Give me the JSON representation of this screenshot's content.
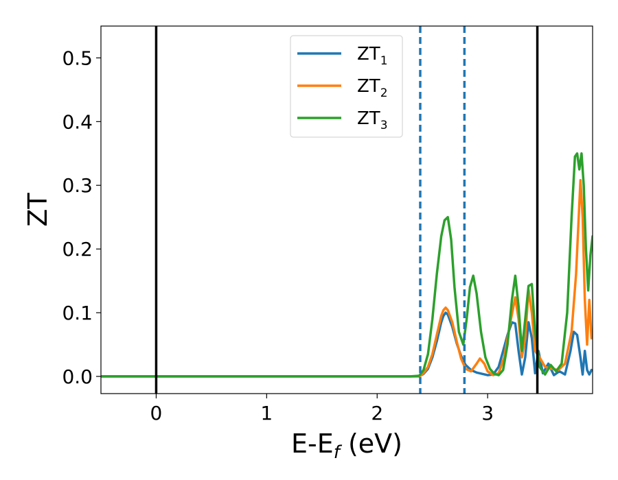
{
  "chart_data": {
    "type": "line",
    "xlabel_main": "E-E",
    "xlabel_sub": "f",
    "xlabel_unit": " (eV)",
    "ylabel": "ZT",
    "xlim": [
      -0.5,
      3.95
    ],
    "ylim": [
      -0.027,
      0.55
    ],
    "x_ticks": [
      0,
      1,
      2,
      3
    ],
    "x_tick_labels": [
      "0",
      "1",
      "2",
      "3"
    ],
    "y_ticks": [
      0.0,
      0.1,
      0.2,
      0.3,
      0.4,
      0.5
    ],
    "y_tick_labels": [
      "0.0",
      "0.1",
      "0.2",
      "0.3",
      "0.4",
      "0.5"
    ],
    "grid": false,
    "legend_position": "top-center",
    "vertical_lines": [
      {
        "x": 0.0,
        "style": "solid",
        "color": "#000000"
      },
      {
        "x": 2.39,
        "style": "dashed",
        "color": "#1f77b4"
      },
      {
        "x": 2.79,
        "style": "dashed",
        "color": "#1f77b4"
      },
      {
        "x": 3.45,
        "style": "solid",
        "color": "#000000"
      }
    ],
    "series": [
      {
        "name_main": "ZT",
        "name_sub": "1",
        "color": "#1f77b4",
        "x": [
          -0.5,
          0.5,
          1.5,
          2.3,
          2.38,
          2.42,
          2.46,
          2.5,
          2.54,
          2.58,
          2.6,
          2.62,
          2.64,
          2.68,
          2.72,
          2.76,
          2.8,
          2.85,
          2.9,
          2.95,
          3.0,
          3.05,
          3.1,
          3.14,
          3.18,
          3.22,
          3.25,
          3.28,
          3.31,
          3.34,
          3.37,
          3.4,
          3.43,
          3.46,
          3.5,
          3.55,
          3.6,
          3.65,
          3.7,
          3.75,
          3.78,
          3.81,
          3.84,
          3.86,
          3.88,
          3.9,
          3.92,
          3.94
        ],
        "y": [
          0.0,
          0.0,
          0.0,
          0.0,
          0.0,
          0.004,
          0.012,
          0.03,
          0.055,
          0.085,
          0.095,
          0.1,
          0.097,
          0.078,
          0.052,
          0.032,
          0.018,
          0.01,
          0.006,
          0.004,
          0.002,
          0.003,
          0.015,
          0.04,
          0.065,
          0.085,
          0.083,
          0.04,
          0.003,
          0.03,
          0.085,
          0.06,
          0.005,
          0.04,
          0.005,
          0.02,
          0.002,
          0.008,
          0.003,
          0.04,
          0.07,
          0.065,
          0.03,
          0.003,
          0.04,
          0.01,
          0.003,
          0.01
        ]
      },
      {
        "name_main": "ZT",
        "name_sub": "2",
        "color": "#ff7f0e",
        "x": [
          -0.5,
          0.5,
          1.5,
          2.3,
          2.38,
          2.42,
          2.46,
          2.5,
          2.54,
          2.58,
          2.6,
          2.62,
          2.64,
          2.68,
          2.72,
          2.76,
          2.8,
          2.85,
          2.9,
          2.93,
          2.97,
          3.0,
          3.05,
          3.1,
          3.15,
          3.2,
          3.25,
          3.28,
          3.31,
          3.34,
          3.37,
          3.4,
          3.43,
          3.47,
          3.52,
          3.58,
          3.64,
          3.7,
          3.76,
          3.8,
          3.84,
          3.86,
          3.88,
          3.9,
          3.92,
          3.94
        ],
        "y": [
          0.0,
          0.0,
          0.0,
          0.0,
          0.0,
          0.005,
          0.015,
          0.035,
          0.065,
          0.095,
          0.104,
          0.108,
          0.104,
          0.085,
          0.055,
          0.028,
          0.012,
          0.008,
          0.02,
          0.028,
          0.02,
          0.008,
          0.002,
          0.005,
          0.03,
          0.08,
          0.124,
          0.09,
          0.03,
          0.06,
          0.136,
          0.1,
          0.04,
          0.03,
          0.015,
          0.012,
          0.01,
          0.02,
          0.07,
          0.16,
          0.308,
          0.25,
          0.12,
          0.05,
          0.12,
          0.06
        ]
      },
      {
        "name_main": "ZT",
        "name_sub": "3",
        "color": "#2ca02c",
        "x": [
          -0.5,
          0.5,
          1.5,
          2.3,
          2.38,
          2.42,
          2.46,
          2.5,
          2.54,
          2.58,
          2.61,
          2.64,
          2.67,
          2.7,
          2.74,
          2.78,
          2.81,
          2.84,
          2.87,
          2.9,
          2.94,
          2.98,
          3.02,
          3.06,
          3.1,
          3.14,
          3.18,
          3.22,
          3.25,
          3.28,
          3.31,
          3.34,
          3.37,
          3.4,
          3.43,
          3.47,
          3.52,
          3.57,
          3.62,
          3.67,
          3.72,
          3.76,
          3.79,
          3.81,
          3.83,
          3.85,
          3.87,
          3.89,
          3.91,
          3.93,
          3.95
        ],
        "y": [
          0.0,
          0.0,
          0.0,
          0.0,
          0.001,
          0.01,
          0.035,
          0.09,
          0.16,
          0.22,
          0.245,
          0.25,
          0.215,
          0.14,
          0.07,
          0.05,
          0.09,
          0.14,
          0.158,
          0.13,
          0.07,
          0.03,
          0.012,
          0.004,
          0.002,
          0.01,
          0.05,
          0.12,
          0.158,
          0.11,
          0.04,
          0.09,
          0.142,
          0.145,
          0.07,
          0.015,
          0.003,
          0.018,
          0.008,
          0.02,
          0.1,
          0.25,
          0.345,
          0.35,
          0.325,
          0.35,
          0.3,
          0.2,
          0.135,
          0.19,
          0.22
        ]
      }
    ]
  }
}
